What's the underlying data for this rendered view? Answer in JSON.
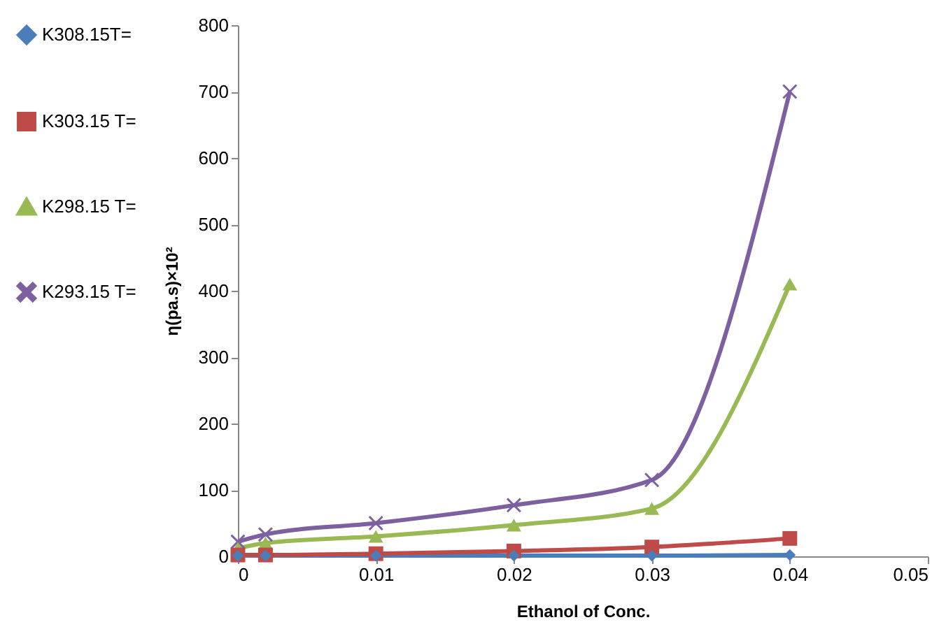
{
  "chart_data": {
    "type": "line",
    "xlabel": "Ethanol of Conc.",
    "ylabel": "η(pa.s)×10²",
    "x": [
      0,
      0.002,
      0.01,
      0.02,
      0.03,
      0.04
    ],
    "series": [
      {
        "name": "K308.15T=",
        "color": "#4a7ebb",
        "marker": "diamond",
        "values": [
          1,
          1,
          1,
          1,
          1,
          2
        ]
      },
      {
        "name": "K303.15 T=",
        "color": "#be4b48",
        "marker": "square",
        "values": [
          2,
          2,
          4,
          8,
          14,
          27
        ]
      },
      {
        "name": "K298.15 T=",
        "color": "#98b954",
        "marker": "triangle",
        "values": [
          12,
          20,
          30,
          47,
          72,
          410
        ]
      },
      {
        "name": "K293.15 T=",
        "color": "#7d60a0",
        "marker": "cross",
        "values": [
          22,
          33,
          50,
          77,
          115,
          700
        ]
      }
    ],
    "xlim": [
      0,
      0.05
    ],
    "xticks": [
      0,
      0.01,
      0.02,
      0.03,
      0.04,
      0.05
    ],
    "ylim": [
      0,
      800
    ],
    "yticks": [
      0,
      100,
      200,
      300,
      400,
      500,
      600,
      700,
      800
    ],
    "grid": false,
    "legend": "left",
    "line_style": "solid"
  }
}
